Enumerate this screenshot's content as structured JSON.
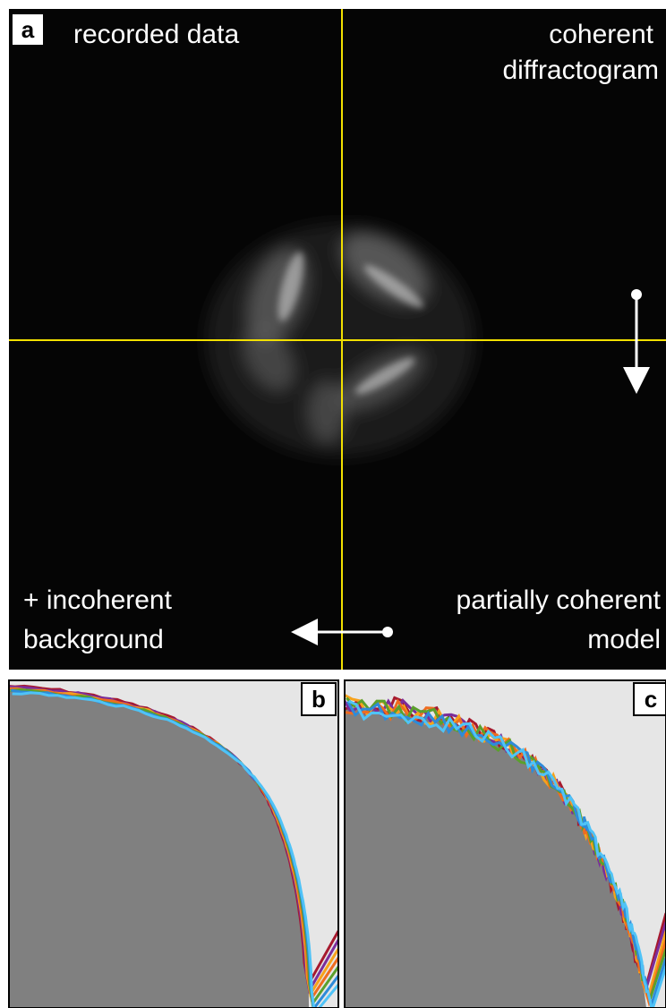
{
  "panel_a": {
    "label": "a",
    "top_left": "recorded data",
    "top_right": [
      "coherent",
      "diffractogram"
    ],
    "bottom_left": [
      "+ incoherent",
      "background"
    ],
    "bottom_right": [
      "partially coherent",
      "model"
    ]
  },
  "panel_b": {
    "label": "b"
  },
  "panel_c": {
    "label": "c"
  }
}
